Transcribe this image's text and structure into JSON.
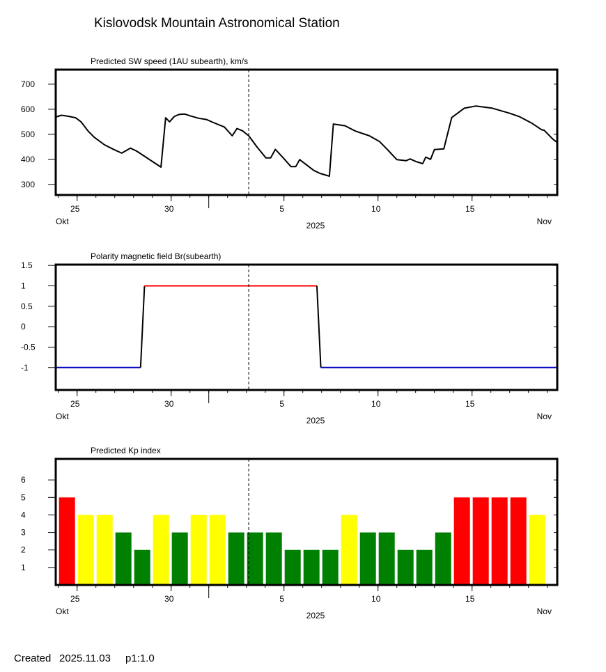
{
  "title": "Kislovodsk Mountain Astronomical Station",
  "footer": {
    "created_label": "Created",
    "date": "2025.11.03",
    "page": "p1:1.0"
  },
  "x_axis": {
    "range": [
      "2025-10-23T21:00",
      "2025-11-19T13:00"
    ],
    "tick_labels": [
      {
        "label": "25",
        "date": "2025-10-25"
      },
      {
        "label": "30",
        "date": "2025-10-30"
      },
      {
        "label": "5",
        "date": "2025-11-05"
      },
      {
        "label": "10",
        "date": "2025-11-10"
      },
      {
        "label": "15",
        "date": "2025-11-15"
      }
    ],
    "month_start": "2025-11-01",
    "month_left": "Okt",
    "month_right": "Nov",
    "year": "2025",
    "current_time_marker": "2025-11-03T03:00"
  },
  "chart_data": [
    {
      "type": "line",
      "title": "Predicted SW speed (1AU subearth), km/s",
      "ylim": [
        258,
        758
      ],
      "yticks": [
        "300",
        "400",
        "500",
        "600",
        "700"
      ],
      "color": "#000000",
      "points": [
        [
          "2025-10-23T21:00",
          569
        ],
        [
          "2025-10-24T04:00",
          576
        ],
        [
          "2025-10-24T13:00",
          572
        ],
        [
          "2025-10-24T22:00",
          566
        ],
        [
          "2025-10-25T05:00",
          550
        ],
        [
          "2025-10-25T14:00",
          513
        ],
        [
          "2025-10-25T22:00",
          488
        ],
        [
          "2025-10-26T11:00",
          458
        ],
        [
          "2025-10-26T23:00",
          439
        ],
        [
          "2025-10-27T09:00",
          425
        ],
        [
          "2025-10-27T20:00",
          445
        ],
        [
          "2025-10-28T04:00",
          433
        ],
        [
          "2025-10-29T11:00",
          369
        ],
        [
          "2025-10-29T17:00",
          566
        ],
        [
          "2025-10-29T22:00",
          550
        ],
        [
          "2025-10-30T04:00",
          571
        ],
        [
          "2025-10-30T10:00",
          579
        ],
        [
          "2025-10-30T17:00",
          581
        ],
        [
          "2025-10-31T01:00",
          573
        ],
        [
          "2025-10-31T11:00",
          564
        ],
        [
          "2025-10-31T21:00",
          559
        ],
        [
          "2025-11-01T06:00",
          547
        ],
        [
          "2025-11-01T20:00",
          529
        ],
        [
          "2025-11-02T06:00",
          494
        ],
        [
          "2025-11-02T12:00",
          523
        ],
        [
          "2025-11-02T19:00",
          514
        ],
        [
          "2025-11-03T03:00",
          494
        ],
        [
          "2025-11-03T14:00",
          448
        ],
        [
          "2025-11-04T01:00",
          406
        ],
        [
          "2025-11-04T07:00",
          406
        ],
        [
          "2025-11-04T13:00",
          440
        ],
        [
          "2025-11-04T23:00",
          406
        ],
        [
          "2025-11-05T09:00",
          371
        ],
        [
          "2025-11-05T15:00",
          371
        ],
        [
          "2025-11-05T20:00",
          399
        ],
        [
          "2025-11-06T14:00",
          356
        ],
        [
          "2025-11-06T22:00",
          344
        ],
        [
          "2025-11-07T10:00",
          333
        ],
        [
          "2025-11-07T15:00",
          541
        ],
        [
          "2025-11-08T06:00",
          534
        ],
        [
          "2025-11-08T19:00",
          513
        ],
        [
          "2025-11-09T13:00",
          494
        ],
        [
          "2025-11-10T02:00",
          471
        ],
        [
          "2025-11-10T12:00",
          439
        ],
        [
          "2025-11-11T00:00",
          399
        ],
        [
          "2025-11-11T12:00",
          395
        ],
        [
          "2025-11-11T17:00",
          402
        ],
        [
          "2025-11-12T00:00",
          392
        ],
        [
          "2025-11-12T09:00",
          383
        ],
        [
          "2025-11-12T13:00",
          409
        ],
        [
          "2025-11-12T19:00",
          400
        ],
        [
          "2025-11-13T00:00",
          439
        ],
        [
          "2025-11-13T12:00",
          442
        ],
        [
          "2025-11-13T22:00",
          567
        ],
        [
          "2025-11-14T14:00",
          604
        ],
        [
          "2025-11-15T05:00",
          613
        ],
        [
          "2025-11-16T02:00",
          604
        ],
        [
          "2025-11-16T23:00",
          585
        ],
        [
          "2025-11-17T12:00",
          571
        ],
        [
          "2025-11-18T04:00",
          545
        ],
        [
          "2025-11-18T17:00",
          518
        ],
        [
          "2025-11-18T20:00",
          516
        ],
        [
          "2025-11-19T07:00",
          481
        ],
        [
          "2025-11-19T13:00",
          467
        ]
      ]
    },
    {
      "type": "line",
      "title": "Polarity magnetic field  Br(subearth)",
      "ylim": [
        -1.55,
        1.52
      ],
      "yticks": [
        "-1",
        "-0.5",
        "0",
        "0.5",
        "1",
        "1.5"
      ],
      "colors": {
        "negative": "#0000C0",
        "positive": "#FF0000",
        "transition": "#000000"
      },
      "points": [
        [
          "2025-10-23T21:00",
          -1
        ],
        [
          "2025-10-28T09:00",
          -1
        ],
        [
          "2025-10-28T14:00",
          1
        ],
        [
          "2025-11-06T18:00",
          1
        ],
        [
          "2025-11-06T23:00",
          -1
        ],
        [
          "2025-11-19T13:00",
          -1
        ]
      ]
    },
    {
      "type": "bar",
      "title": "Predicted Kp index",
      "ylim": [
        0,
        7.2
      ],
      "yticks": [
        "1",
        "2",
        "3",
        "4",
        "5",
        "6"
      ],
      "colors": {
        "low": "#008000",
        "moderate": "#FFFF00",
        "high": "#FF0000"
      },
      "categories": [
        "2025-10-24",
        "2025-10-25",
        "2025-10-26",
        "2025-10-27",
        "2025-10-28",
        "2025-10-29",
        "2025-10-30",
        "2025-10-31",
        "2025-11-01",
        "2025-11-02",
        "2025-11-03",
        "2025-11-04",
        "2025-11-05",
        "2025-11-06",
        "2025-11-07",
        "2025-11-08",
        "2025-11-09",
        "2025-11-10",
        "2025-11-11",
        "2025-11-12",
        "2025-11-13",
        "2025-11-14",
        "2025-11-15",
        "2025-11-16",
        "2025-11-17",
        "2025-11-18"
      ],
      "values": [
        5,
        4,
        4,
        3,
        2,
        4,
        3,
        4,
        4,
        3,
        3,
        3,
        2,
        2,
        2,
        4,
        3,
        3,
        2,
        2,
        3,
        5,
        5,
        5,
        5,
        4
      ]
    }
  ]
}
